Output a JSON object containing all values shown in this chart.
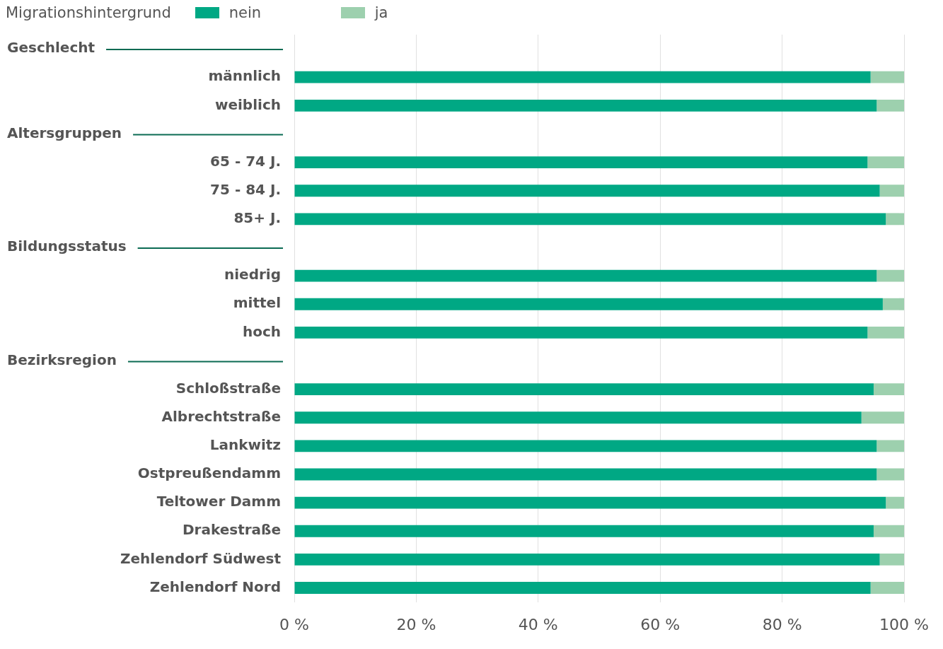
{
  "chart_data": {
    "type": "bar",
    "orientation": "horizontal",
    "stacked": true,
    "legend": "top left",
    "legend_title": "Migrationshintergrund",
    "grid": "x",
    "annotations": [
      "Geschlecht",
      "Altersgruppen",
      "Bildungsstatus",
      "Bezirksregion"
    ],
    "categories": [
      null,
      "männlich",
      "weiblich",
      null,
      "65 - 74 J.",
      "75 - 84 J.",
      "85+ J.",
      null,
      "niedrig",
      "mittel",
      "hoch",
      null,
      "Schloßstraße",
      "Albrechtstraße",
      "Lankwitz",
      "Ostpreußendamm",
      "Teltower Damm",
      "Drakestraße",
      "Zehlendorf Südwest",
      "Zehlendorf Nord"
    ],
    "series": [
      {
        "name": "nein",
        "color": "#00a884",
        "values": [
          null,
          94.5,
          95.5,
          null,
          94,
          96,
          97,
          null,
          95.5,
          96.5,
          94,
          null,
          95,
          93,
          95.5,
          95.5,
          97,
          95,
          96,
          94.5
        ]
      },
      {
        "name": "ja",
        "color": "#9dd0ae",
        "values": [
          null,
          5.5,
          4.5,
          null,
          6,
          4,
          3,
          null,
          4.5,
          3.5,
          6,
          null,
          5,
          7,
          4.5,
          4.5,
          3,
          5,
          4,
          5.5
        ]
      }
    ],
    "xlim": [
      0,
      100
    ],
    "xticks": [
      {
        "value": 0,
        "label": "0 %"
      },
      {
        "value": 20,
        "label": "20 %"
      },
      {
        "value": 40,
        "label": "40 %"
      },
      {
        "value": 60,
        "label": "60 %"
      },
      {
        "value": 80,
        "label": "80 %"
      },
      {
        "value": 100,
        "label": "100 %"
      }
    ]
  }
}
